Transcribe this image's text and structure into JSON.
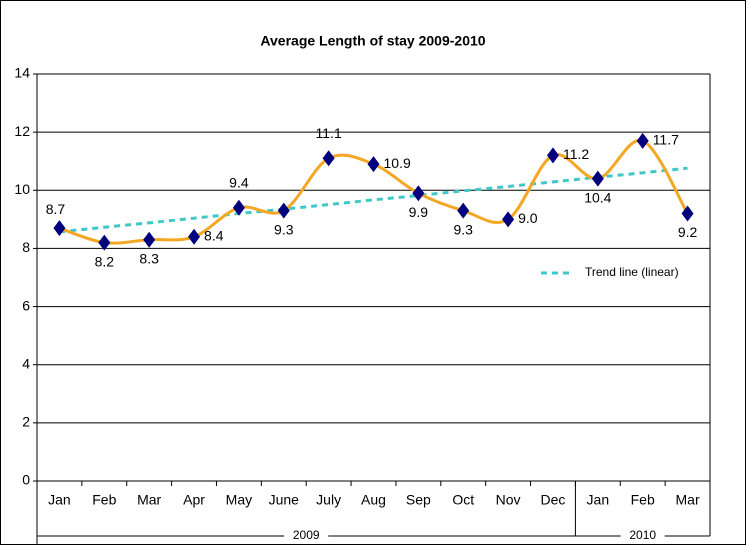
{
  "chart_data": {
    "type": "line",
    "title": "Average Length of stay 2009-2010",
    "categories": [
      "Jan",
      "Feb",
      "Mar",
      "Apr",
      "May",
      "June",
      "July",
      "Aug",
      "Sep",
      "Oct",
      "Nov",
      "Dec",
      "Jan",
      "Feb",
      "Mar"
    ],
    "x_groups": [
      {
        "label": "2009",
        "count": 12
      },
      {
        "label": "2010",
        "count": 3
      }
    ],
    "series": [
      {
        "color": "#f5a623",
        "marker_color": "#00007f",
        "values": [
          8.7,
          8.2,
          8.3,
          8.4,
          9.4,
          9.3,
          11.1,
          10.9,
          9.9,
          9.3,
          9.0,
          11.2,
          10.4,
          11.7,
          9.2
        ],
        "value_labels": [
          "8.7",
          "8.2",
          "8.3",
          "8.4",
          "9.4",
          "9.3",
          "11.1",
          "10.9",
          "9.9",
          "9.3",
          "9.0",
          "11.2",
          "10.4",
          "11.7",
          "9.2"
        ]
      },
      {
        "name": "Trend line (linear)",
        "color": "#40c8c8",
        "values": [
          8.57,
          8.73,
          8.88,
          9.04,
          9.2,
          9.35,
          9.51,
          9.67,
          9.82,
          9.98,
          10.13,
          10.29,
          10.45,
          10.6,
          10.76
        ]
      }
    ],
    "ylim": [
      0,
      14
    ],
    "yticks": [
      0,
      2,
      4,
      6,
      8,
      10,
      12,
      14
    ],
    "grid": true,
    "legend": "right"
  }
}
